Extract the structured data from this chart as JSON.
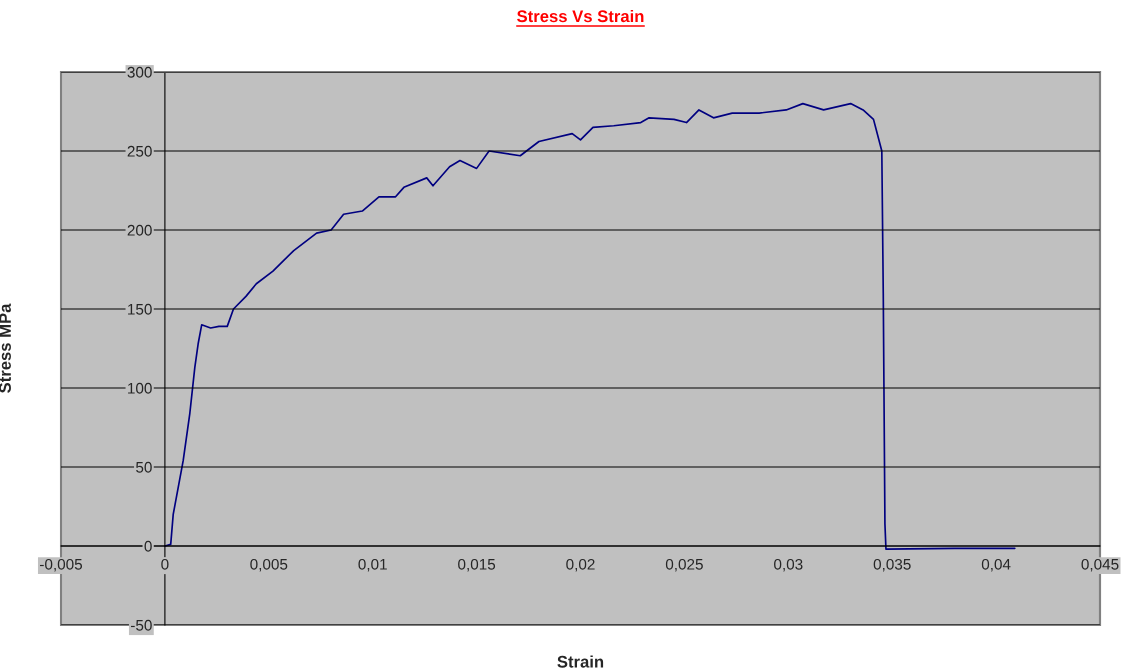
{
  "chart_data": {
    "type": "line",
    "title": "Stress Vs Strain",
    "xlabel": "Strain",
    "ylabel": "Stress MPa",
    "xlim": [
      -0.005,
      0.045
    ],
    "ylim": [
      -50,
      300
    ],
    "xticks": [
      {
        "value": -0.005,
        "label": "-0,005"
      },
      0,
      {
        "value": 0.005,
        "label": "0,005"
      },
      {
        "value": 0.01,
        "label": "0,01"
      },
      {
        "value": 0.015,
        "label": "0,015"
      },
      {
        "value": 0.02,
        "label": "0,02"
      },
      {
        "value": 0.025,
        "label": "0,025"
      },
      {
        "value": 0.03,
        "label": "0,03"
      },
      {
        "value": 0.035,
        "label": "0,035"
      },
      {
        "value": 0.04,
        "label": "0,04"
      },
      {
        "value": 0.045,
        "label": "0,045"
      }
    ],
    "yticks": [
      -50,
      0,
      50,
      100,
      150,
      200,
      250,
      300
    ],
    "grid": "y",
    "marker": "none",
    "line_style": "solid",
    "series": [
      {
        "color": "#000080",
        "x": [
          0,
          0.00028,
          0.0004,
          0.00088,
          0.0012,
          0.00144,
          0.0016,
          0.00177,
          0.0022,
          0.0026,
          0.003,
          0.0033,
          0.0039,
          0.0044,
          0.0052,
          0.0062,
          0.0073,
          0.008,
          0.0086,
          0.0095,
          0.0103,
          0.0111,
          0.0115,
          0.0126,
          0.0129,
          0.0137,
          0.0142,
          0.015,
          0.0156,
          0.0171,
          0.018,
          0.0196,
          0.02,
          0.0206,
          0.0216,
          0.0229,
          0.0233,
          0.0245,
          0.0251,
          0.0257,
          0.0264,
          0.0273,
          0.0286,
          0.0299,
          0.0307,
          0.0317,
          0.033,
          0.0336,
          0.0341,
          0.0342,
          0.0345,
          0.03457,
          0.03465,
          0.0347,
          0.038,
          0.0409
        ],
        "values": [
          0,
          1,
          20,
          54,
          84,
          113,
          128,
          140,
          138,
          139,
          139,
          150,
          158,
          166,
          174,
          187,
          198,
          200,
          210,
          212,
          221,
          221,
          227,
          233,
          228,
          240,
          244,
          239,
          250,
          247,
          256,
          261,
          257,
          265,
          266,
          268,
          271,
          270,
          268,
          276,
          271,
          274,
          274,
          276,
          280,
          276,
          280,
          276,
          270,
          265,
          250,
          160,
          14,
          -2,
          -1.5,
          -1.5
        ]
      }
    ]
  }
}
